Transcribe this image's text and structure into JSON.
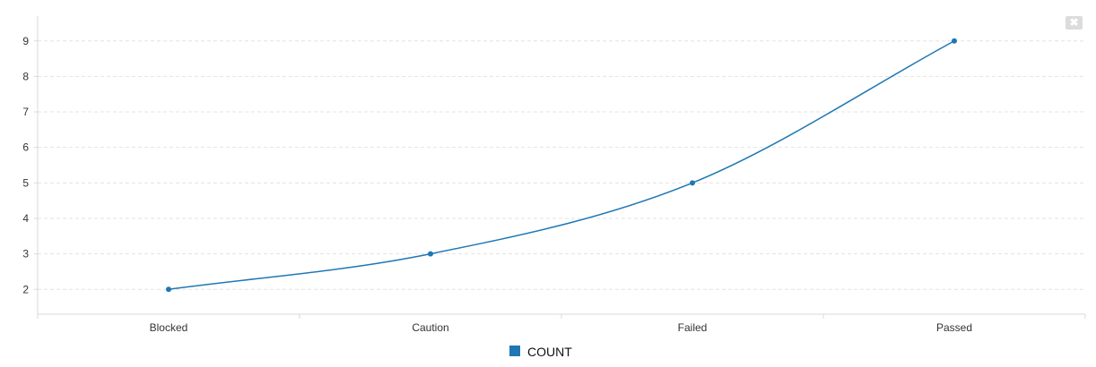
{
  "chart_data": {
    "type": "line",
    "categories": [
      "Blocked",
      "Caution",
      "Failed",
      "Passed"
    ],
    "series": [
      {
        "name": "COUNT",
        "values": [
          2,
          3,
          5,
          9
        ]
      }
    ],
    "ylim": [
      1.3,
      9.7
    ],
    "yticks": [
      2,
      3,
      4,
      5,
      6,
      7,
      8,
      9
    ],
    "grid": true,
    "legend_position": "bottom-center",
    "interpolation": "smooth"
  },
  "colors": {
    "series": "#1f77b4",
    "grid": "#e3e3e3",
    "axis": "#d8d8d8"
  },
  "controls": {
    "close_icon": "close-icon",
    "close_glyph": "✖"
  }
}
